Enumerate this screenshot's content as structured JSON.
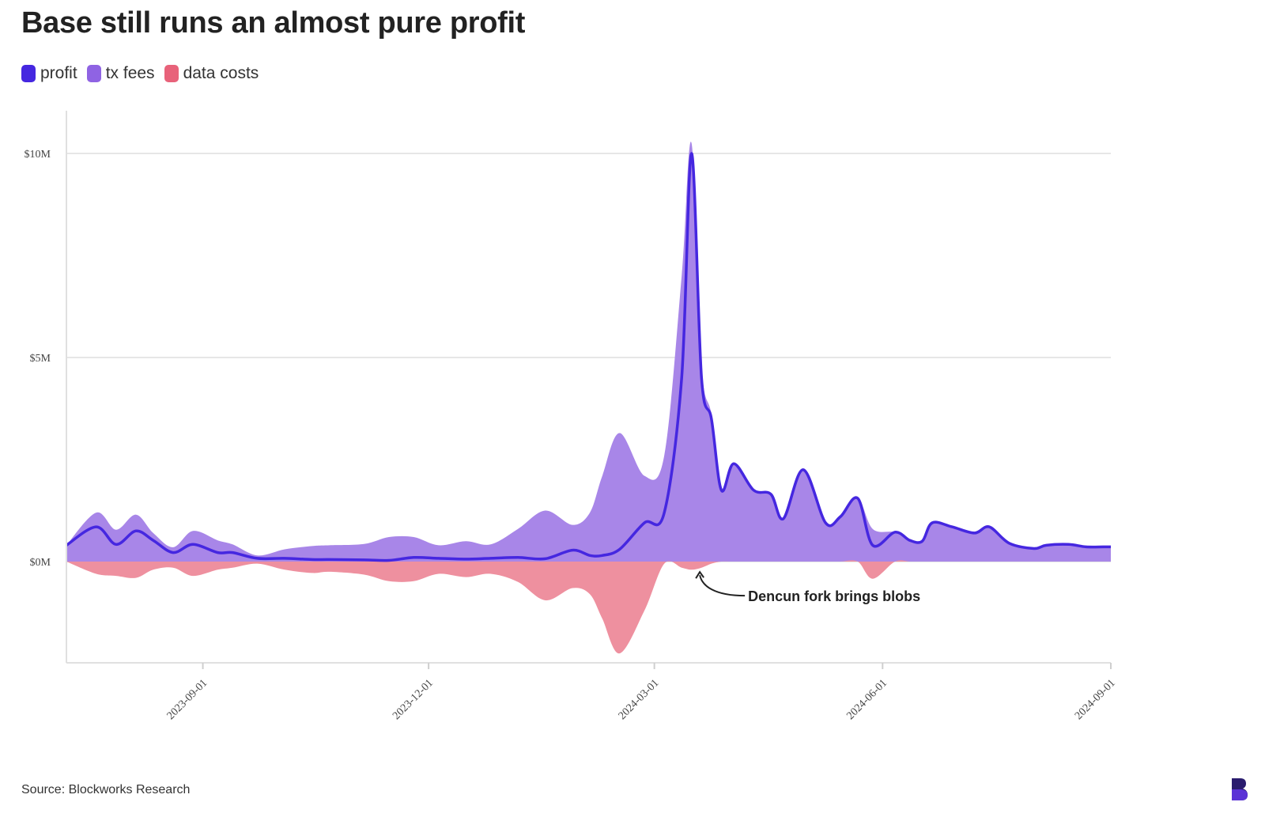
{
  "title": "Base still runs an almost pure profit",
  "legend": [
    {
      "label": "profit",
      "color": "#4527e0"
    },
    {
      "label": "tx fees",
      "color": "#8f63e3"
    },
    {
      "label": "data costs",
      "color": "#e8627a"
    }
  ],
  "source": "Source: Blockworks Research",
  "logo_icon": "blockworks-b-logo",
  "chart_data": {
    "type": "area",
    "title": "Base still runs an almost pure profit",
    "xlabel": "",
    "ylabel": "",
    "ylim": [
      -2.5,
      10.5
    ],
    "y_ticks": [
      {
        "v": 0,
        "label": "$0M"
      },
      {
        "v": 5,
        "label": "$5M"
      },
      {
        "v": 10,
        "label": "$10M"
      }
    ],
    "x_range": [
      "2023-07-08",
      "2024-09-01"
    ],
    "x_ticks": [
      "2023-09-01",
      "2023-12-01",
      "2024-03-01",
      "2024-06-01",
      "2024-09-01"
    ],
    "grid": true,
    "legend_position": "top-left",
    "annotation": {
      "text": "Dencun fork brings blobs",
      "x": "2024-03-19",
      "y": -0.1
    },
    "x": [
      "2023-07-08",
      "2023-07-20",
      "2023-07-28",
      "2023-08-05",
      "2023-08-12",
      "2023-08-20",
      "2023-08-28",
      "2023-09-07",
      "2023-09-13",
      "2023-09-23",
      "2023-10-04",
      "2023-10-15",
      "2023-10-22",
      "2023-11-05",
      "2023-11-15",
      "2023-11-25",
      "2023-12-05",
      "2023-12-16",
      "2023-12-26",
      "2024-01-06",
      "2024-01-17",
      "2024-01-28",
      "2024-02-04",
      "2024-02-09",
      "2024-02-16",
      "2024-02-26",
      "2024-03-05",
      "2024-03-12",
      "2024-03-16",
      "2024-03-20",
      "2024-03-24",
      "2024-03-28",
      "2024-04-02",
      "2024-04-10",
      "2024-04-17",
      "2024-04-22",
      "2024-04-30",
      "2024-05-09",
      "2024-05-15",
      "2024-05-22",
      "2024-05-28",
      "2024-06-06",
      "2024-06-12",
      "2024-06-17",
      "2024-06-21",
      "2024-06-29",
      "2024-07-08",
      "2024-07-14",
      "2024-07-22",
      "2024-08-01",
      "2024-08-06",
      "2024-08-15",
      "2024-08-22",
      "2024-08-29",
      "2024-09-01"
    ],
    "series": [
      {
        "name": "profit",
        "color": "#4527e0",
        "values": [
          0.4,
          0.85,
          0.42,
          0.75,
          0.52,
          0.22,
          0.42,
          0.22,
          0.22,
          0.08,
          0.08,
          0.05,
          0.05,
          0.04,
          0.03,
          0.1,
          0.08,
          0.06,
          0.08,
          0.1,
          0.07,
          0.28,
          0.15,
          0.15,
          0.3,
          0.95,
          1.2,
          4.5,
          10.0,
          4.5,
          3.5,
          1.75,
          2.4,
          1.75,
          1.65,
          1.05,
          2.25,
          0.95,
          1.1,
          1.55,
          0.4,
          0.72,
          0.52,
          0.5,
          0.95,
          0.85,
          0.7,
          0.85,
          0.45,
          0.32,
          0.4,
          0.42,
          0.36,
          0.36,
          0.36
        ]
      },
      {
        "name": "tx fees",
        "color": "#8f63e3",
        "values": [
          0.4,
          1.2,
          0.78,
          1.15,
          0.7,
          0.35,
          0.75,
          0.52,
          0.42,
          0.15,
          0.3,
          0.38,
          0.4,
          0.43,
          0.6,
          0.6,
          0.4,
          0.5,
          0.42,
          0.8,
          1.25,
          0.9,
          1.2,
          2.1,
          3.15,
          2.1,
          2.6,
          7.0,
          10.25,
          4.8,
          3.6,
          1.75,
          2.4,
          1.75,
          1.65,
          1.05,
          2.25,
          0.95,
          1.1,
          1.55,
          0.8,
          0.72,
          0.52,
          0.5,
          0.95,
          0.85,
          0.7,
          0.85,
          0.45,
          0.32,
          0.4,
          0.42,
          0.36,
          0.36,
          0.36
        ]
      },
      {
        "name": "data costs",
        "color": "#e8627a",
        "values": [
          0.0,
          -0.3,
          -0.35,
          -0.4,
          -0.2,
          -0.15,
          -0.35,
          -0.2,
          -0.15,
          -0.05,
          -0.2,
          -0.28,
          -0.25,
          -0.32,
          -0.48,
          -0.48,
          -0.3,
          -0.38,
          -0.3,
          -0.5,
          -0.95,
          -0.65,
          -0.8,
          -1.4,
          -2.25,
          -1.2,
          -0.05,
          -0.15,
          -0.2,
          -0.15,
          -0.05,
          0.0,
          0.0,
          0.0,
          0.0,
          0.0,
          0.0,
          0.0,
          0.0,
          0.0,
          -0.42,
          0.0,
          0.0,
          0.0,
          0.0,
          0.0,
          0.0,
          0.0,
          0.0,
          0.0,
          0.0,
          0.0,
          0.0,
          0.0,
          0.0
        ]
      }
    ]
  }
}
